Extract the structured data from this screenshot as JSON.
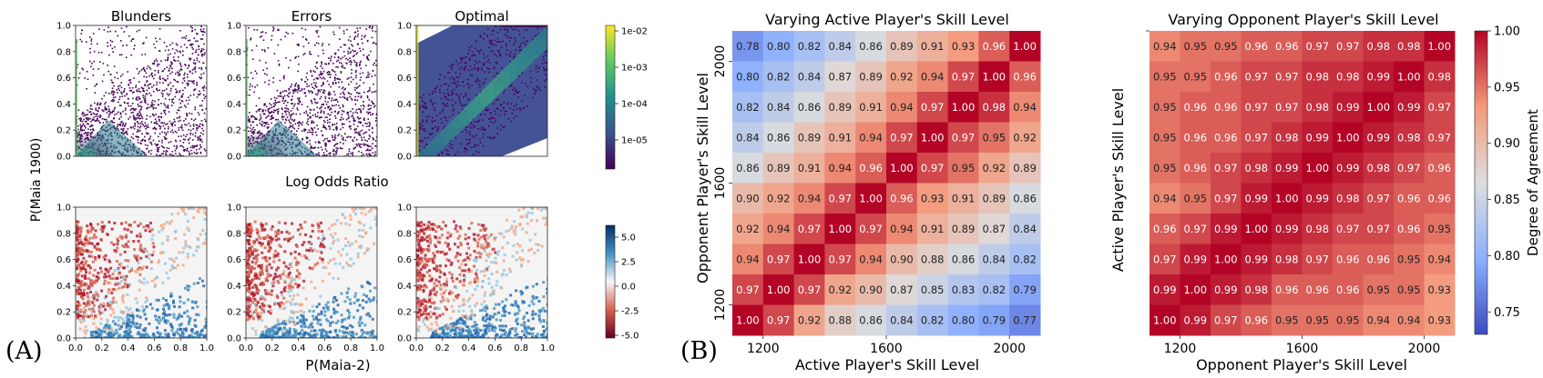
{
  "panel_a": {
    "label": "(A)",
    "ylabel": "P(Maia 1900)",
    "xlabel": "P(Maia-2)",
    "row2_title": "Log Odds Ratio",
    "hist_titles": [
      "Blunders",
      "Errors",
      "Optimal"
    ],
    "axis_ticks": [
      "0.0",
      "0.2",
      "0.4",
      "0.6",
      "0.8",
      "1.0"
    ],
    "cbar_density_ticks": [
      "1e-02",
      "1e-03",
      "1e-04",
      "1e-05"
    ],
    "cbar_lor_ticks": [
      "5.0",
      "2.5",
      "0.0",
      "-2.5",
      "-5.0"
    ]
  },
  "panel_b_label": "(B)",
  "chart_data": [
    {
      "type": "heatmap",
      "title": "Varying Active Player's Skill Level",
      "xlabel": "Active Player's Skill Level",
      "ylabel": "Opponent Player's Skill Level",
      "x_ticks": [
        "1200",
        "1600",
        "2000"
      ],
      "y_ticks": [
        "2000",
        "1600",
        "1200"
      ],
      "rows": [
        [
          "0.78",
          "0.80",
          "0.82",
          "0.84",
          "0.86",
          "0.89",
          "0.91",
          "0.93",
          "0.96",
          "1.00"
        ],
        [
          "0.80",
          "0.82",
          "0.84",
          "0.87",
          "0.89",
          "0.92",
          "0.94",
          "0.97",
          "1.00",
          "0.96"
        ],
        [
          "0.82",
          "0.84",
          "0.86",
          "0.89",
          "0.91",
          "0.94",
          "0.97",
          "1.00",
          "0.98",
          "0.94"
        ],
        [
          "0.84",
          "0.86",
          "0.89",
          "0.91",
          "0.94",
          "0.97",
          "1.00",
          "0.97",
          "0.95",
          "0.92"
        ],
        [
          "0.86",
          "0.89",
          "0.91",
          "0.94",
          "0.96",
          "1.00",
          "0.97",
          "0.95",
          "0.92",
          "0.89"
        ],
        [
          "0.90",
          "0.92",
          "0.94",
          "0.97",
          "1.00",
          "0.96",
          "0.93",
          "0.91",
          "0.89",
          "0.86"
        ],
        [
          "0.92",
          "0.94",
          "0.97",
          "1.00",
          "0.97",
          "0.94",
          "0.91",
          "0.89",
          "0.87",
          "0.84"
        ],
        [
          "0.94",
          "0.97",
          "1.00",
          "0.97",
          "0.94",
          "0.90",
          "0.88",
          "0.86",
          "0.84",
          "0.82"
        ],
        [
          "0.97",
          "1.00",
          "0.97",
          "0.92",
          "0.90",
          "0.87",
          "0.85",
          "0.83",
          "0.82",
          "0.79"
        ],
        [
          "1.00",
          "0.97",
          "0.92",
          "0.88",
          "0.86",
          "0.84",
          "0.82",
          "0.80",
          "0.79",
          "0.77"
        ]
      ]
    },
    {
      "type": "heatmap",
      "title": "Varying Opponent Player's Skill Level",
      "xlabel": "Opponent Player's Skill Level",
      "ylabel": "Active Player's Skill Level",
      "x_ticks": [
        "1200",
        "1600",
        "2000"
      ],
      "rows": [
        [
          "0.94",
          "0.95",
          "0.95",
          "0.96",
          "0.96",
          "0.97",
          "0.97",
          "0.98",
          "0.98",
          "1.00"
        ],
        [
          "0.95",
          "0.95",
          "0.96",
          "0.97",
          "0.97",
          "0.98",
          "0.98",
          "0.99",
          "1.00",
          "0.98"
        ],
        [
          "0.95",
          "0.96",
          "0.96",
          "0.97",
          "0.97",
          "0.98",
          "0.99",
          "1.00",
          "0.99",
          "0.97"
        ],
        [
          "0.95",
          "0.96",
          "0.96",
          "0.97",
          "0.98",
          "0.99",
          "1.00",
          "0.99",
          "0.98",
          "0.97"
        ],
        [
          "0.95",
          "0.96",
          "0.97",
          "0.98",
          "0.99",
          "1.00",
          "0.99",
          "0.98",
          "0.97",
          "0.96"
        ],
        [
          "0.94",
          "0.95",
          "0.97",
          "0.99",
          "1.00",
          "0.99",
          "0.98",
          "0.97",
          "0.96",
          "0.96"
        ],
        [
          "0.96",
          "0.97",
          "0.99",
          "1.00",
          "0.99",
          "0.98",
          "0.97",
          "0.97",
          "0.96",
          "0.95"
        ],
        [
          "0.97",
          "0.99",
          "1.00",
          "0.99",
          "0.98",
          "0.97",
          "0.96",
          "0.96",
          "0.95",
          "0.94"
        ],
        [
          "0.99",
          "1.00",
          "0.99",
          "0.98",
          "0.96",
          "0.96",
          "0.96",
          "0.95",
          "0.95",
          "0.93"
        ],
        [
          "1.00",
          "0.99",
          "0.97",
          "0.96",
          "0.95",
          "0.95",
          "0.95",
          "0.94",
          "0.94",
          "0.93"
        ]
      ]
    }
  ],
  "colorbar": {
    "label": "Degree of Agreement",
    "ticks": [
      "1.00",
      "0.95",
      "0.90",
      "0.85",
      "0.80",
      "0.75"
    ],
    "range": [
      0.73,
      1.0
    ]
  },
  "colors": {
    "viridis_dark": "#440154",
    "low": "#3b4cc0",
    "mid": "#dddddd",
    "high": "#b40426"
  }
}
